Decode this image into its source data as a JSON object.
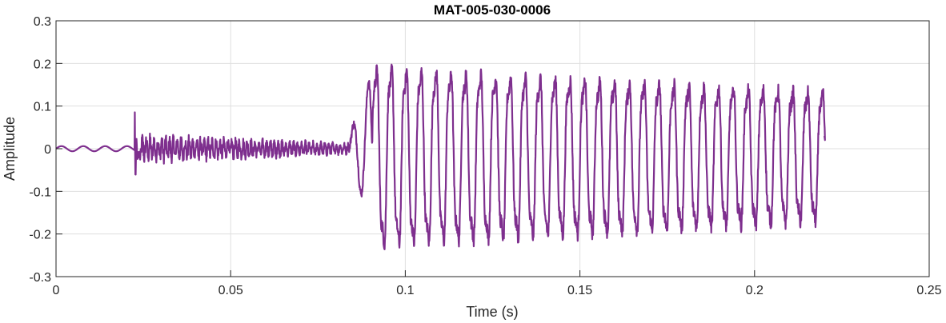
{
  "chart_data": {
    "type": "line",
    "title": "MAT-005-030-0006",
    "xlabel": "Time (s)",
    "ylabel": "Amplitude",
    "xlim": [
      0,
      0.25
    ],
    "ylim": [
      -0.3,
      0.3
    ],
    "grid": true,
    "x_ticks": [
      0,
      0.05,
      0.1,
      0.15,
      0.2,
      0.25
    ],
    "x_tick_labels": [
      "0",
      "0.05",
      "0.1",
      "0.15",
      "0.2",
      "0.25"
    ],
    "y_ticks": [
      0.3,
      0.2,
      0.1,
      0,
      -0.1,
      -0.2,
      -0.3
    ],
    "y_tick_labels": [
      "0.3",
      "0.2",
      "0.1",
      "0",
      "-0.1",
      "-0.2",
      "-0.3"
    ],
    "series": [
      {
        "color": "#7e2f8e",
        "description_points": [
          [
            0.0,
            0.0
          ],
          [
            0.006,
            0.005
          ],
          [
            0.012,
            -0.004
          ],
          [
            0.018,
            0.006
          ],
          [
            0.0225,
            0.0
          ],
          [
            0.0228,
            0.13
          ],
          [
            0.0232,
            -0.055
          ],
          [
            0.025,
            0.06
          ],
          [
            0.03,
            -0.035
          ],
          [
            0.05,
            0.025
          ],
          [
            0.07,
            -0.018
          ],
          [
            0.082,
            0.01
          ],
          [
            0.0845,
            0.03
          ],
          [
            0.0865,
            -0.06
          ],
          [
            0.088,
            0.1
          ],
          [
            0.0895,
            -0.15
          ],
          [
            0.0905,
            0.2
          ],
          [
            0.0925,
            -0.28
          ],
          [
            0.0945,
            0.22
          ],
          [
            0.0985,
            -0.29
          ],
          [
            0.1045,
            0.21
          ],
          [
            0.1055,
            -0.295
          ],
          [
            0.12,
            0.18
          ],
          [
            0.122,
            -0.27
          ],
          [
            0.15,
            0.16
          ],
          [
            0.152,
            -0.24
          ],
          [
            0.18,
            0.14
          ],
          [
            0.182,
            -0.23
          ],
          [
            0.2,
            0.14
          ],
          [
            0.202,
            -0.22
          ],
          [
            0.2175,
            0.135
          ],
          [
            0.2185,
            -0.22
          ],
          [
            0.22,
            0.03
          ]
        ]
      }
    ]
  }
}
